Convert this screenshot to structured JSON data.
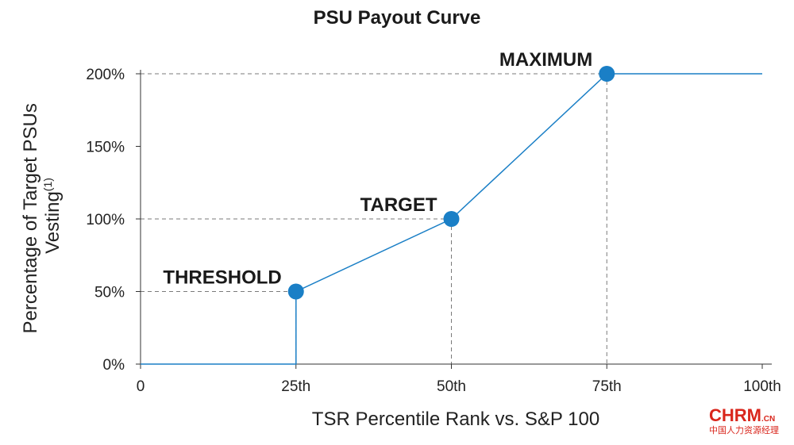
{
  "chart_data": {
    "type": "line",
    "title": "PSU Payout Curve",
    "xlabel": "TSR Percentile Rank vs. S&P 100",
    "ylabel_line1": "Percentage of Target PSUs",
    "ylabel_line2": "Vesting",
    "ylabel_footnote": "(1)",
    "xlim": [
      0,
      100
    ],
    "ylim": [
      0,
      200
    ],
    "x_ticks": [
      {
        "value": 0,
        "label": "0"
      },
      {
        "value": 25,
        "label": "25th"
      },
      {
        "value": 50,
        "label": "50th"
      },
      {
        "value": 75,
        "label": "75th"
      },
      {
        "value": 100,
        "label": "100th"
      }
    ],
    "y_ticks": [
      {
        "value": 0,
        "label": "0%"
      },
      {
        "value": 50,
        "label": "50%"
      },
      {
        "value": 100,
        "label": "100%"
      },
      {
        "value": 150,
        "label": "150%"
      },
      {
        "value": 200,
        "label": "200%"
      }
    ],
    "series": [
      {
        "points": [
          {
            "x": 0,
            "y": 0
          },
          {
            "x": 25,
            "y": 0
          },
          {
            "x": 25,
            "y": 50
          },
          {
            "x": 50,
            "y": 100
          },
          {
            "x": 75,
            "y": 200
          },
          {
            "x": 100,
            "y": 200
          }
        ],
        "color": "#1a7fc6"
      }
    ],
    "markers": [
      {
        "x": 25,
        "y": 50,
        "label": "THRESHOLD"
      },
      {
        "x": 50,
        "y": 100,
        "label": "TARGET"
      },
      {
        "x": 75,
        "y": 200,
        "label": "MAXIMUM"
      }
    ],
    "grid": false,
    "reference_lines": "dashed",
    "colors": {
      "line": "#1a7fc6",
      "marker": "#1a7fc6",
      "axis": "#333333",
      "dash": "#7a7a7a"
    }
  },
  "watermark": {
    "main": "CHRM",
    "suffix": ".CN",
    "sub": "中国人力资源经理"
  }
}
